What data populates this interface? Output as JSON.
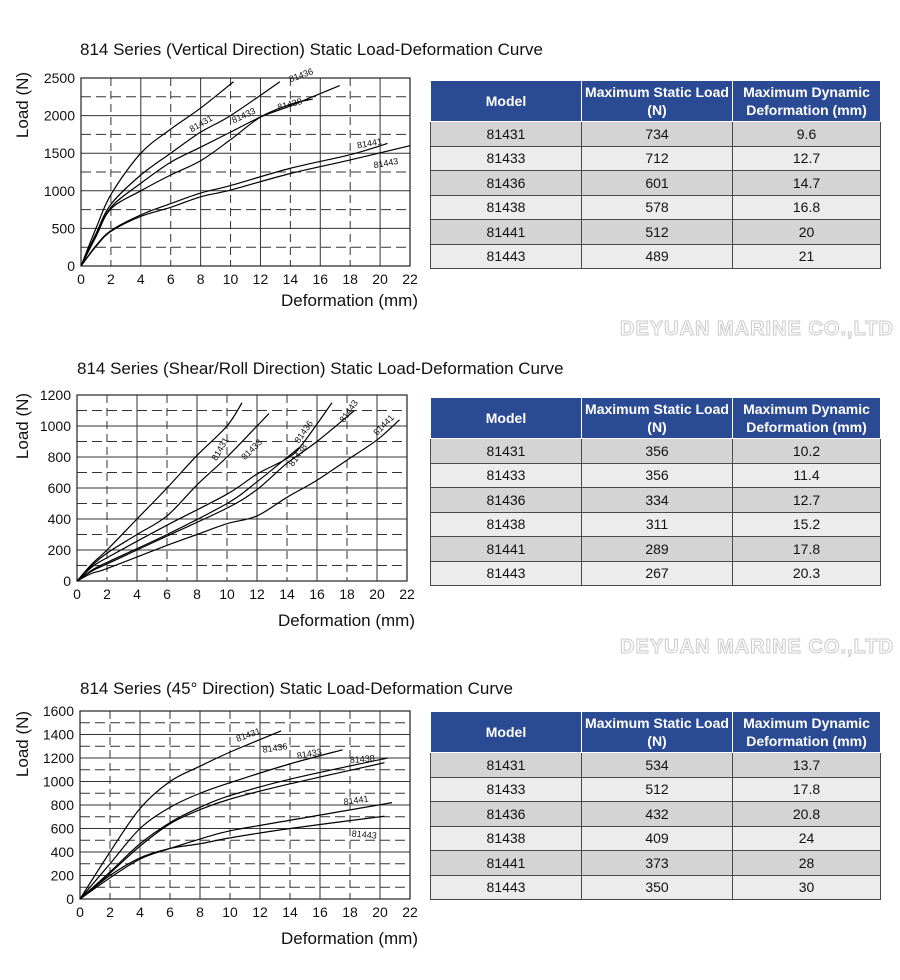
{
  "watermark": "DEYUAN MARINE CO.,LTD",
  "table_headers": [
    "Model",
    "Maximum Static Load (N)",
    "Maximum Dynamic Deformation (mm)"
  ],
  "colors": {
    "header_bg": "#2b4a94",
    "row_light": "#ececec",
    "row_dark": "#d4d4d4",
    "curve": "#000000"
  },
  "sections": [
    {
      "title": "814 Series (Vertical Direction) Static Load-Deformation Curve",
      "table": {
        "rows": [
          [
            "81431",
            "734",
            "9.6"
          ],
          [
            "81433",
            "712",
            "12.7"
          ],
          [
            "81436",
            "601",
            "14.7"
          ],
          [
            "81438",
            "578",
            "16.8"
          ],
          [
            "81441",
            "512",
            "20"
          ],
          [
            "81443",
            "489",
            "21"
          ]
        ]
      }
    },
    {
      "title": "814 Series (Shear/Roll Direction) Static Load-Deformation Curve",
      "table": {
        "rows": [
          [
            "81431",
            "356",
            "10.2"
          ],
          [
            "81433",
            "356",
            "11.4"
          ],
          [
            "81436",
            "334",
            "12.7"
          ],
          [
            "81438",
            "311",
            "15.2"
          ],
          [
            "81441",
            "289",
            "17.8"
          ],
          [
            "81443",
            "267",
            "20.3"
          ]
        ]
      }
    },
    {
      "title": "814 Series (45° Direction) Static Load-Deformation Curve",
      "table": {
        "rows": [
          [
            "81431",
            "534",
            "13.7"
          ],
          [
            "81433",
            "512",
            "17.8"
          ],
          [
            "81436",
            "432",
            "20.8"
          ],
          [
            "81438",
            "409",
            "24"
          ],
          [
            "81441",
            "373",
            "28"
          ],
          [
            "81443",
            "350",
            "30"
          ]
        ]
      }
    }
  ],
  "chart_data": [
    {
      "type": "line",
      "xlabel": "Deformation (mm)",
      "ylabel": "Load (N)",
      "xlim": [
        0,
        22
      ],
      "ylim": [
        0,
        2500
      ],
      "xticks": [
        0,
        2,
        4,
        6,
        8,
        10,
        12,
        14,
        16,
        18,
        20,
        22
      ],
      "yticks": [
        0,
        500,
        1000,
        1500,
        2000,
        2500
      ],
      "grid": true,
      "series": [
        {
          "name": "81431",
          "points": [
            [
              0,
              0
            ],
            [
              1,
              500
            ],
            [
              2,
              950
            ],
            [
              4,
              1500
            ],
            [
              6,
              1820
            ],
            [
              8,
              2100
            ],
            [
              10.2,
              2450
            ]
          ]
        },
        {
          "name": "81433",
          "points": [
            [
              0,
              0
            ],
            [
              1,
              430
            ],
            [
              2,
              820
            ],
            [
              4,
              1210
            ],
            [
              6,
              1500
            ],
            [
              8,
              1780
            ],
            [
              10,
              2000
            ],
            [
              13.3,
              2450
            ]
          ]
        },
        {
          "name": "81438",
          "points": [
            [
              0,
              0
            ],
            [
              1,
              400
            ],
            [
              2,
              780
            ],
            [
              4,
              1100
            ],
            [
              6,
              1380
            ],
            [
              8,
              1580
            ],
            [
              10,
              1780
            ],
            [
              12,
              1980
            ],
            [
              14,
              2130
            ],
            [
              17.3,
              2400
            ]
          ]
        },
        {
          "name": "81436",
          "points": [
            [
              0,
              0
            ],
            [
              1,
              390
            ],
            [
              2,
              760
            ],
            [
              4,
              1000
            ],
            [
              6,
              1210
            ],
            [
              8,
              1400
            ],
            [
              10,
              1680
            ],
            [
              12,
              1980
            ],
            [
              14,
              2150
            ],
            [
              15.5,
              2220
            ]
          ]
        },
        {
          "name": "81441",
          "points": [
            [
              0,
              0
            ],
            [
              1,
              270
            ],
            [
              2,
              470
            ],
            [
              4,
              680
            ],
            [
              6,
              830
            ],
            [
              8,
              970
            ],
            [
              10,
              1070
            ],
            [
              14,
              1300
            ],
            [
              18,
              1480
            ],
            [
              20.5,
              1630
            ]
          ]
        },
        {
          "name": "81443",
          "points": [
            [
              0,
              0
            ],
            [
              1,
              260
            ],
            [
              2,
              460
            ],
            [
              4,
              660
            ],
            [
              6,
              780
            ],
            [
              8,
              920
            ],
            [
              10,
              1010
            ],
            [
              14,
              1230
            ],
            [
              18,
              1410
            ],
            [
              22,
              1600
            ]
          ]
        }
      ]
    },
    {
      "type": "line",
      "xlabel": "Deformation (mm)",
      "ylabel": "Load (N)",
      "xlim": [
        0,
        22
      ],
      "ylim": [
        0,
        1200
      ],
      "xticks": [
        0,
        2,
        4,
        6,
        8,
        10,
        12,
        14,
        16,
        18,
        20,
        22
      ],
      "yticks": [
        0,
        200,
        400,
        600,
        800,
        1000,
        1200
      ],
      "grid": true,
      "series": [
        {
          "name": "81431",
          "points": [
            [
              0,
              0
            ],
            [
              1,
              110
            ],
            [
              2,
              200
            ],
            [
              4,
              400
            ],
            [
              6,
              600
            ],
            [
              8,
              810
            ],
            [
              10,
              1000
            ],
            [
              11,
              1150
            ]
          ]
        },
        {
          "name": "81433",
          "points": [
            [
              0,
              0
            ],
            [
              1,
              100
            ],
            [
              2,
              180
            ],
            [
              4,
              300
            ],
            [
              6,
              420
            ],
            [
              8,
              620
            ],
            [
              10,
              800
            ],
            [
              12,
              1000
            ],
            [
              12.8,
              1080
            ]
          ]
        },
        {
          "name": "81438",
          "points": [
            [
              0,
              0
            ],
            [
              1,
              90
            ],
            [
              2,
              150
            ],
            [
              6,
              360
            ],
            [
              10,
              560
            ],
            [
              12,
              690
            ],
            [
              14,
              790
            ],
            [
              15,
              880
            ],
            [
              17,
              1150
            ]
          ]
        },
        {
          "name": "81436",
          "points": [
            [
              0,
              0
            ],
            [
              1,
              70
            ],
            [
              2,
              120
            ],
            [
              6,
              300
            ],
            [
              10,
              500
            ],
            [
              12,
              640
            ],
            [
              14.8,
              860
            ]
          ]
        },
        {
          "name": "81443",
          "points": [
            [
              0,
              0
            ],
            [
              1,
              65
            ],
            [
              2,
              110
            ],
            [
              6,
              290
            ],
            [
              10,
              470
            ],
            [
              12,
              590
            ],
            [
              14,
              760
            ],
            [
              16,
              900
            ],
            [
              18.5,
              1100
            ]
          ]
        },
        {
          "name": "81441",
          "points": [
            [
              0,
              0
            ],
            [
              1,
              50
            ],
            [
              2,
              80
            ],
            [
              6,
              230
            ],
            [
              8,
              300
            ],
            [
              10,
              370
            ],
            [
              12,
              420
            ],
            [
              14,
              540
            ],
            [
              16,
              650
            ],
            [
              18,
              780
            ],
            [
              20,
              910
            ],
            [
              21.5,
              1040
            ]
          ]
        }
      ]
    },
    {
      "type": "line",
      "xlabel": "Deformation (mm)",
      "ylabel": "Load (N)",
      "xlim": [
        0,
        22
      ],
      "ylim": [
        0,
        1600
      ],
      "xticks": [
        0,
        2,
        4,
        6,
        8,
        10,
        12,
        14,
        16,
        18,
        20,
        22
      ],
      "yticks": [
        0,
        200,
        400,
        600,
        800,
        1000,
        1200,
        1400,
        1600
      ],
      "grid": true,
      "series": [
        {
          "name": "81431",
          "points": [
            [
              0,
              0
            ],
            [
              2,
              400
            ],
            [
              4,
              770
            ],
            [
              6,
              1000
            ],
            [
              8,
              1130
            ],
            [
              10,
              1250
            ],
            [
              13.4,
              1430
            ]
          ]
        },
        {
          "name": "81433",
          "points": [
            [
              0,
              0
            ],
            [
              2,
              300
            ],
            [
              4,
              600
            ],
            [
              6,
              780
            ],
            [
              8,
              900
            ],
            [
              10,
              990
            ],
            [
              14,
              1150
            ],
            [
              17.5,
              1270
            ]
          ]
        },
        {
          "name": "81438",
          "points": [
            [
              0,
              0
            ],
            [
              2,
              230
            ],
            [
              4,
              470
            ],
            [
              6,
              650
            ],
            [
              8,
              780
            ],
            [
              10,
              880
            ],
            [
              14,
              1020
            ],
            [
              20.5,
              1200
            ]
          ]
        },
        {
          "name": "81436",
          "points": [
            [
              0,
              0
            ],
            [
              2,
              220
            ],
            [
              4,
              450
            ],
            [
              6,
              640
            ],
            [
              8,
              760
            ],
            [
              10,
              850
            ],
            [
              14,
              980
            ],
            [
              20.3,
              1160
            ]
          ]
        },
        {
          "name": "81441",
          "points": [
            [
              0,
              0
            ],
            [
              2,
              180
            ],
            [
              4,
              340
            ],
            [
              6,
              430
            ],
            [
              8,
              510
            ],
            [
              10,
              580
            ],
            [
              14,
              670
            ],
            [
              20.8,
              820
            ]
          ]
        },
        {
          "name": "81443",
          "points": [
            [
              0,
              0
            ],
            [
              2,
              200
            ],
            [
              4,
              350
            ],
            [
              6,
              430
            ],
            [
              8,
              470
            ],
            [
              10,
              520
            ],
            [
              14,
              600
            ],
            [
              20.3,
              705
            ]
          ]
        }
      ]
    }
  ]
}
